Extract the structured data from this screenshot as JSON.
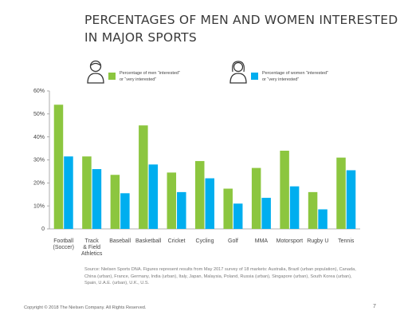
{
  "title_lines": [
    "PERCENTAGES OF MEN AND WOMEN INTERESTED",
    "IN MAJOR SPORTS"
  ],
  "legend": {
    "men": {
      "icon": "man-icon",
      "label_line1": "Percentage of men “interested”",
      "label_line2": "or “very interested”"
    },
    "women": {
      "icon": "woman-icon",
      "label_line1": "Percentage of women “interested”",
      "label_line2": "or “very interested”"
    }
  },
  "colors": {
    "men": "#8cc63f",
    "women": "#00aeef",
    "axis": "#999999",
    "text": "#444444"
  },
  "chart_data": {
    "type": "bar",
    "title": "PERCENTAGES OF MEN AND WOMEN INTERESTED IN MAJOR SPORTS",
    "categories": [
      "Football (Soccer)",
      "Track & Field Athletics",
      "Baseball",
      "Basketball",
      "Cricket",
      "Cycling",
      "Golf",
      "MMA",
      "Motorsport",
      "Rugby U",
      "Tennis"
    ],
    "category_labels": [
      [
        "Football",
        "(Soccer)"
      ],
      [
        "Track",
        "& Field",
        "Athletics"
      ],
      [
        "Baseball"
      ],
      [
        "Basketball"
      ],
      [
        "Cricket"
      ],
      [
        "Cycling"
      ],
      [
        "Golf"
      ],
      [
        "MMA"
      ],
      [
        "Motorsport"
      ],
      [
        "Rugby U"
      ],
      [
        "Tennis"
      ]
    ],
    "series": [
      {
        "name": "Percentage of men “interested” or “very interested”",
        "values": [
          54,
          31.5,
          23.5,
          45,
          24.5,
          29.5,
          17.5,
          26.5,
          34,
          16,
          31
        ]
      },
      {
        "name": "Percentage of women “interested” or “very interested”",
        "values": [
          31.5,
          26,
          15.5,
          28,
          16,
          22,
          11,
          13.5,
          18.5,
          8.5,
          25.5
        ]
      }
    ],
    "yticks": [
      "0",
      "10%",
      "20%",
      "30%",
      "40%",
      "50%",
      "60%"
    ],
    "ylim": [
      0,
      60
    ],
    "xlabel": "",
    "ylabel": "",
    "grid": false,
    "legend_position": "top"
  },
  "source": "Source: Nielsen Sports DNA. Figures represent results from May 2017 survey of 18 markets: Australia, Brazil (urban population), Canada, China (urban), France, Germany, India (urban), Italy, Japan, Malaysia, Poland, Russia (urban), Singapore (urban), South Korea (urban), Spain, U.A.E. (urban), U.K., U.S.",
  "copyright": "Copyright © 2018 The Nielsen Company. All Rights Reserved.",
  "page_number": "7"
}
